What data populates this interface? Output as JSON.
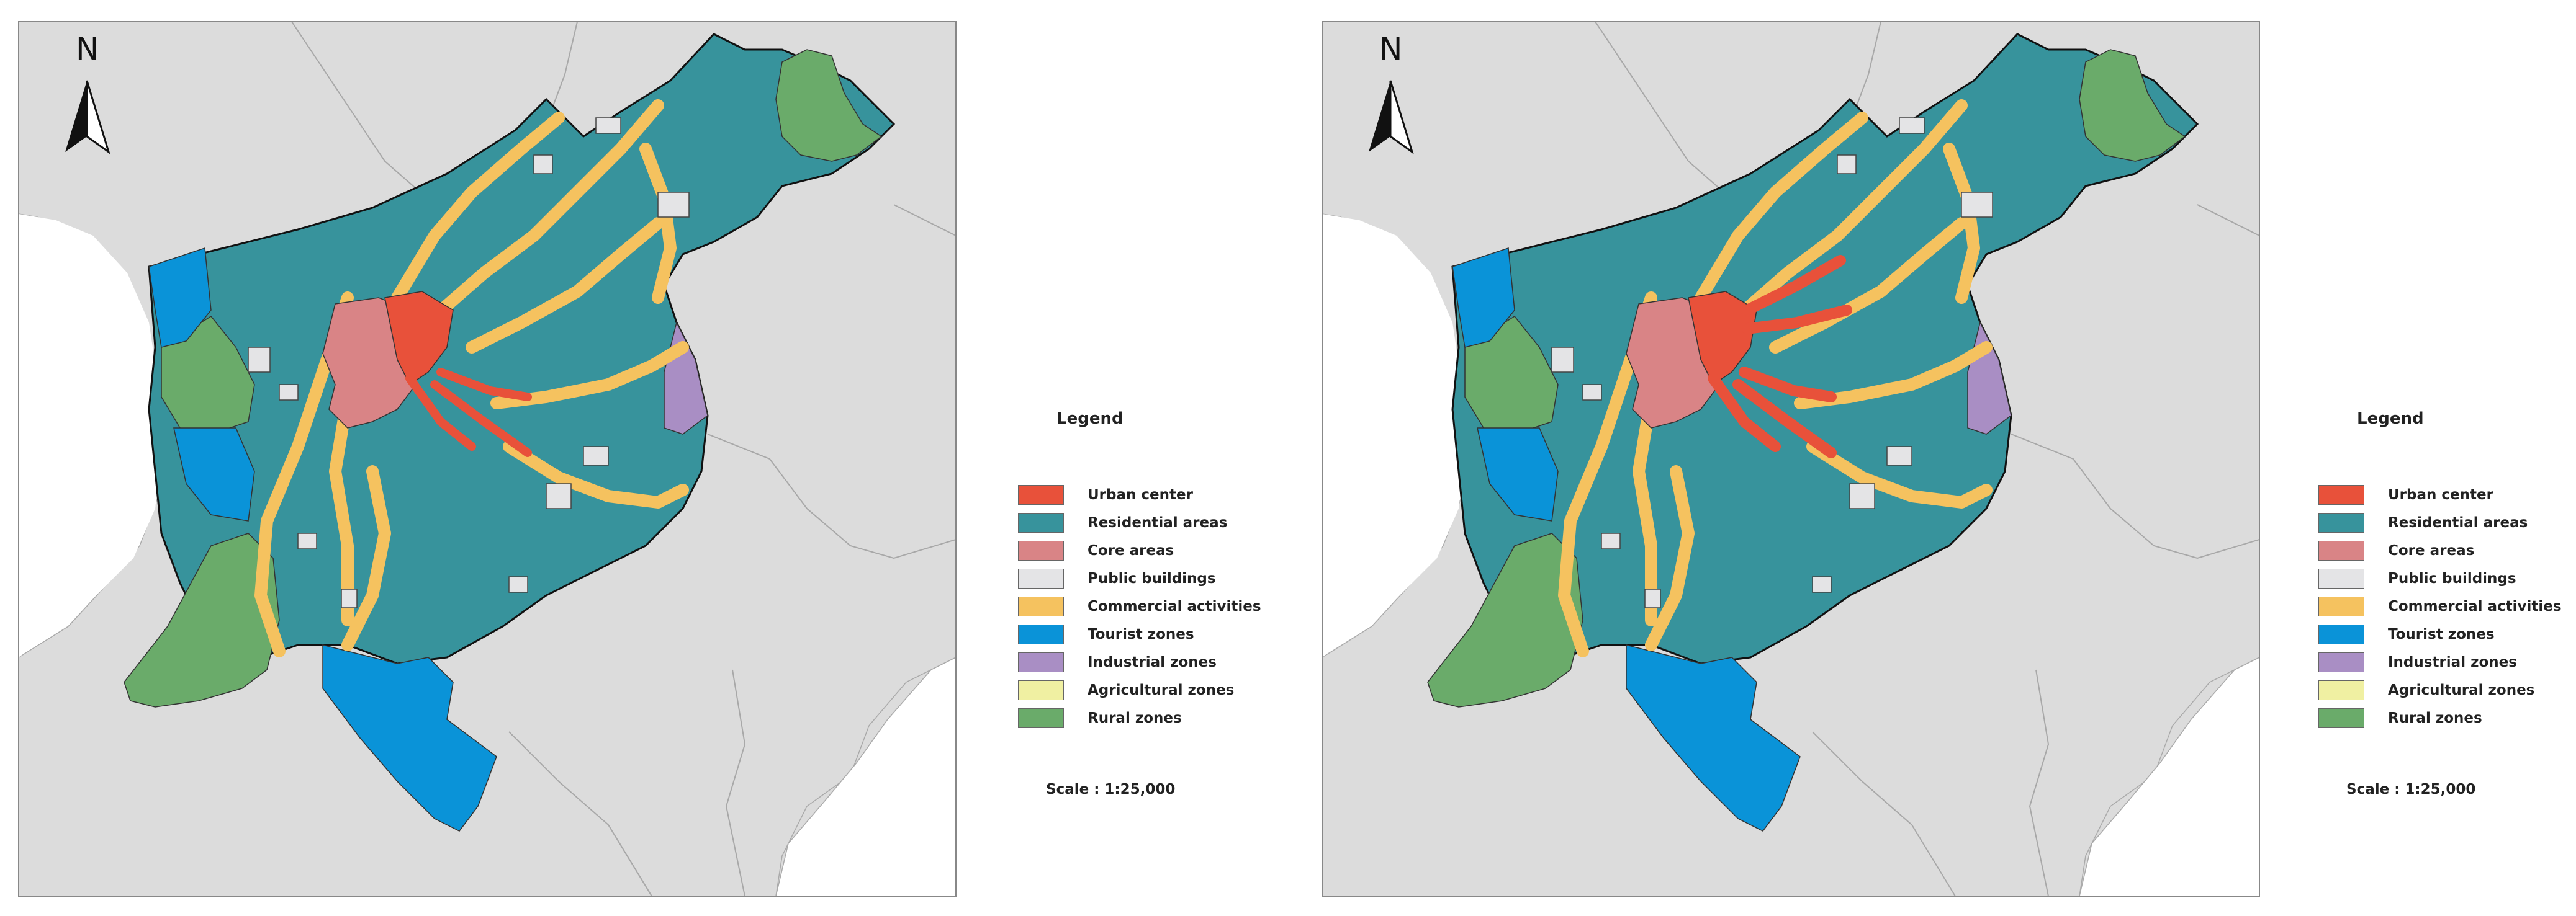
{
  "panels": [
    {
      "north": "N",
      "legend_title": "Legend",
      "scale": "Scale : 1:25,000",
      "legend_items": [
        {
          "label": "Urban center",
          "color": "#e8513a"
        },
        {
          "label": "Residential areas",
          "color": "#37939c"
        },
        {
          "label": "Core areas",
          "color": "#d98486"
        },
        {
          "label": "Public buildings",
          "color": "#e4e4e6"
        },
        {
          "label": "Commercial activities",
          "color": "#f5c25f"
        },
        {
          "label": "Tourist zones",
          "color": "#0a93d8"
        },
        {
          "label": "Industrial zones",
          "color": "#a98ec4"
        },
        {
          "label": "Agricultural zones",
          "color": "#f0f0a2"
        },
        {
          "label": "Rural zones",
          "color": "#6aab6a"
        }
      ]
    },
    {
      "north": "N",
      "legend_title": "Legend",
      "scale": "Scale : 1:25,000",
      "legend_items": [
        {
          "label": "Urban center",
          "color": "#e8513a"
        },
        {
          "label": "Residential areas",
          "color": "#37939c"
        },
        {
          "label": "Core areas",
          "color": "#d98486"
        },
        {
          "label": "Public buildings",
          "color": "#e4e4e6"
        },
        {
          "label": "Commercial activities",
          "color": "#f5c25f"
        },
        {
          "label": "Tourist zones",
          "color": "#0a93d8"
        },
        {
          "label": "Industrial zones",
          "color": "#a98ec4"
        },
        {
          "label": "Agricultural zones",
          "color": "#f0f0a2"
        },
        {
          "label": "Rural zones",
          "color": "#6aab6a"
        }
      ]
    }
  ]
}
